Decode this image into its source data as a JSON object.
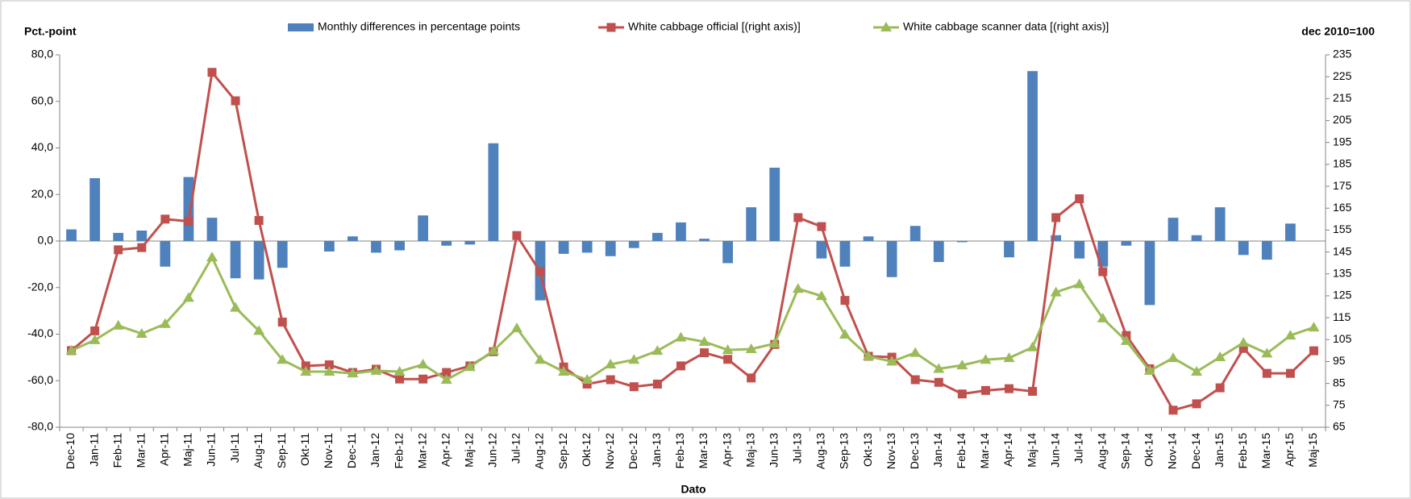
{
  "chart_data": {
    "type": "combo",
    "ylabel": "Pct.-point",
    "y2label": "dec 2010=100",
    "xlabel": "Dato",
    "legend": "top",
    "categories": [
      "Dec-10",
      "Jan-11",
      "Feb-11",
      "Mar-11",
      "Apr-11",
      "Maj-11",
      "Jun-11",
      "Jul-11",
      "Aug-11",
      "Sep-11",
      "Okt-11",
      "Nov-11",
      "Dec-11",
      "Jan-12",
      "Feb-12",
      "Mar-12",
      "Apr-12",
      "Maj-12",
      "Jun-12",
      "Jul-12",
      "Aug-12",
      "Sep-12",
      "Okt-12",
      "Nov-12",
      "Dec-12",
      "Jan-13",
      "Feb-13",
      "Mar-13",
      "Apr-13",
      "Maj-13",
      "Jun-13",
      "Jul-13",
      "Aug-13",
      "Sep-13",
      "Okt-13",
      "Nov-13",
      "Dec-13",
      "Jan-14",
      "Feb-14",
      "Mar-14",
      "Apr-14",
      "Maj-14",
      "Jun-14",
      "Jul-14",
      "Aug-14",
      "Sep-14",
      "Okt-14",
      "Nov-14",
      "Dec-14",
      "Jan-15",
      "Feb-15",
      "Mar-15",
      "Apr-15",
      "Maj-15"
    ],
    "series": [
      {
        "name": "Monthly differences in percentage points",
        "type": "bar",
        "axis": "y",
        "color": "#4f81bd",
        "values": [
          5,
          27,
          3.5,
          4.5,
          -11,
          27.5,
          10,
          -16,
          -16.5,
          -11.5,
          0,
          -4.5,
          2,
          -5,
          -4,
          11,
          -2,
          -1.5,
          42,
          0,
          -25.5,
          -5.5,
          -5,
          -6.5,
          -3,
          3.5,
          8,
          1,
          -9.5,
          14.5,
          31.5,
          0,
          -7.5,
          -11,
          2,
          -15.5,
          6.5,
          -9,
          -0.5,
          0,
          -7,
          73,
          2.5,
          -7.5,
          -11,
          -2,
          -27.5,
          10,
          2.5,
          14.5,
          -6,
          -8,
          7.5,
          0
        ]
      },
      {
        "name": "White cabbage official [(right axis)]",
        "type": "line",
        "axis": "y2",
        "color": "#c0504d",
        "marker": "square",
        "values": [
          100,
          109,
          146,
          147,
          160,
          159,
          227,
          214,
          159.4,
          113,
          93,
          93.5,
          90,
          91.5,
          87,
          87,
          90,
          93,
          99.5,
          152.5,
          136,
          92.5,
          84.7,
          86.7,
          83.5,
          84.7,
          93,
          99,
          96,
          87.5,
          102.8,
          160.7,
          156.6,
          122.9,
          97.4,
          97,
          86.7,
          85.5,
          80.2,
          81.8,
          82.6,
          81.4,
          160.7,
          169.3,
          136,
          106.9,
          91.7,
          72.8,
          75.7,
          83,
          101,
          89.6,
          89.6,
          99.9
        ]
      },
      {
        "name": "White cabbage scanner data [(right axis)]",
        "type": "line",
        "axis": "y2",
        "color": "#9bbb59",
        "marker": "triangle",
        "values": [
          100,
          104.8,
          111.4,
          107.7,
          112.2,
          124.1,
          142.6,
          119.6,
          109,
          95.8,
          90.4,
          90.4,
          89.6,
          90.8,
          90.4,
          93.7,
          86.7,
          92.5,
          99.9,
          110.2,
          95.8,
          90.4,
          86.7,
          93.7,
          95.8,
          99.9,
          106,
          104,
          100.3,
          100.7,
          103.2,
          128.2,
          124.9,
          107.3,
          97.4,
          95,
          99,
          91.7,
          93.3,
          95.8,
          96.6,
          101.5,
          126.6,
          130.3,
          114.7,
          104.4,
          90.8,
          96.6,
          90.4,
          97,
          103.6,
          98.7,
          106.9,
          110.6
        ]
      }
    ],
    "ylim": [
      -80,
      80
    ],
    "yticks": [
      {
        "value": -80,
        "label": "-80,0"
      },
      {
        "value": -60,
        "label": "-60,0"
      },
      {
        "value": -40,
        "label": "-40,0"
      },
      {
        "value": -20,
        "label": "-20,0"
      },
      {
        "value": 0,
        "label": "0,0"
      },
      {
        "value": 20,
        "label": "20,0"
      },
      {
        "value": 40,
        "label": "40,0"
      },
      {
        "value": 60,
        "label": "60,0"
      },
      {
        "value": 80,
        "label": "80,0"
      }
    ],
    "y2lim": [
      65,
      235
    ],
    "y2ticks": [
      65,
      75,
      85,
      95,
      105,
      115,
      125,
      135,
      145,
      155,
      165,
      175,
      185,
      195,
      205,
      215,
      225,
      235
    ],
    "grid": false
  }
}
